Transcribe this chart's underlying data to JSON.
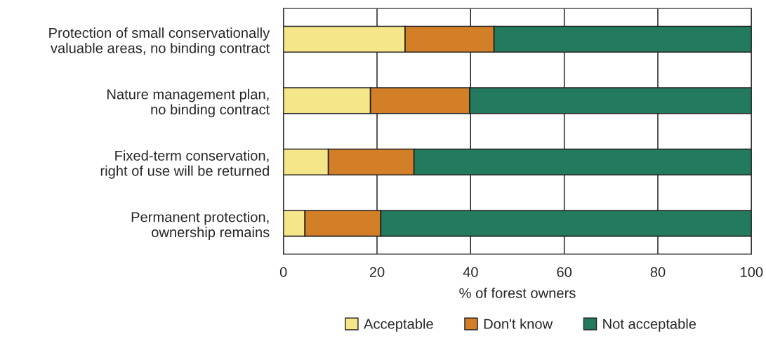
{
  "chart_data": {
    "type": "bar",
    "orientation": "horizontal",
    "stacked": true,
    "xlabel": "% of forest owners",
    "categories": [
      "Protection of small conservationally\nvaluable areas, no binding contract",
      "Nature management plan,\nno binding contract",
      "Fixed-term conservation,\nright of use will be returned",
      "Permanent protection,\nownership remains"
    ],
    "series": [
      {
        "name": "Acceptable",
        "color": "#f5e68a",
        "values": [
          26.0,
          18.6,
          9.6,
          4.6
        ]
      },
      {
        "name": "Don't know",
        "color": "#d37f27",
        "values": [
          19.0,
          21.2,
          18.3,
          16.2
        ]
      },
      {
        "name": "Not acceptable",
        "color": "#237a5e",
        "values": [
          55.0,
          60.2,
          72.1,
          79.2
        ]
      }
    ],
    "xlim": [
      0,
      100
    ],
    "xticks": [
      0,
      20,
      40,
      60,
      80,
      100
    ],
    "grid": "x",
    "legend": "bottom"
  }
}
